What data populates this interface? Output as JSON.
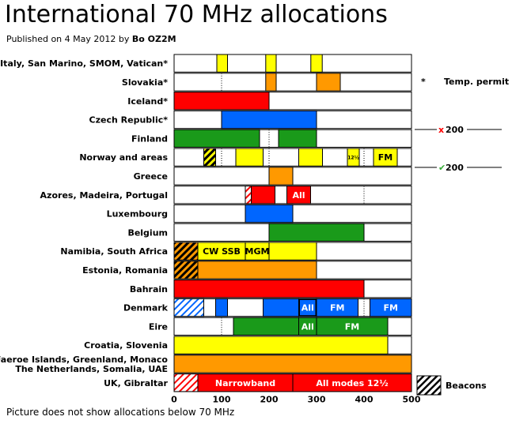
{
  "title": "International 70 MHz allocations",
  "subtitle": {
    "prefix": "Published on 4 May 2012 by ",
    "author": "Bo OZ2M"
  },
  "footnote": "Picture does not show allocations below 70 MHz",
  "colors": {
    "yellow": "#ffff00",
    "orange": "#ff9900",
    "red": "#ff0000",
    "blue": "#0066ff",
    "green": "#1a9a1a",
    "white": "#ffffff",
    "red_mark": "#ff0000",
    "green_mark": "#33aa33"
  },
  "side_annotations": {
    "temp_permit_star": "*",
    "temp_permit": "Temp. permit",
    "x_mark": "x",
    "x_value": "200",
    "check_mark": "✔",
    "check_value": "200",
    "beacons": "Beacons"
  },
  "chart_data": {
    "type": "bar",
    "orientation": "horizontal",
    "x_unit": "kHz above 70 MHz",
    "xlim": [
      0,
      500
    ],
    "xticks": [
      "0",
      "100",
      "200",
      "300",
      "400",
      "500"
    ],
    "categories": [
      "Italy, San Marino, SMOM, Vatican*",
      "Slovakia*",
      "Iceland*",
      "Czech Republic*",
      "Finland",
      "Norway and areas",
      "Greece",
      "Azores, Madeira, Portugal",
      "Luxembourg",
      "Belgium",
      "Namibia, South Africa",
      "Estonia, Romania",
      "Bahrain",
      "Denmark",
      "Eire",
      "Croatia, Slovenia",
      "Faeroe Islands, Greenland, Monaco\nThe Netherlands, Somalia, UAE",
      "UK, Gibraltar"
    ],
    "rows": [
      {
        "segments": [
          {
            "from": 90,
            "to": 112.5,
            "color": "yellow"
          },
          {
            "from": 193,
            "to": 215,
            "color": "yellow"
          },
          {
            "from": 288,
            "to": 312,
            "color": "yellow"
          }
        ],
        "dotted": [
          100,
          300
        ]
      },
      {
        "segments": [
          {
            "from": 193,
            "to": 215,
            "color": "orange"
          },
          {
            "from": 300,
            "to": 350,
            "color": "orange"
          }
        ],
        "dotted": [
          100,
          300
        ]
      },
      {
        "segments": [
          {
            "from": 0,
            "to": 200,
            "color": "red"
          }
        ]
      },
      {
        "segments": [
          {
            "from": 100,
            "to": 300,
            "color": "blue"
          }
        ]
      },
      {
        "segments": [
          {
            "from": 0,
            "to": 180,
            "color": "green"
          },
          {
            "from": 220,
            "to": 300,
            "color": "green"
          }
        ],
        "dotted": [
          200
        ]
      },
      {
        "segments": [
          {
            "from": 62.5,
            "to": 87.5,
            "color": "hatch-yellow"
          },
          {
            "from": 130,
            "to": 187.5,
            "color": "yellow"
          },
          {
            "from": 262.5,
            "to": 312.5,
            "color": "yellow"
          },
          {
            "from": 365,
            "to": 390,
            "color": "yellow",
            "label": "12½",
            "small": true
          },
          {
            "from": 420,
            "to": 470,
            "color": "yellow",
            "label": "FM",
            "label_color": "#000"
          }
        ],
        "dotted": [
          100,
          200,
          300,
          400
        ]
      },
      {
        "segments": [
          {
            "from": 200,
            "to": 250,
            "color": "orange"
          }
        ]
      },
      {
        "segments": [
          {
            "from": 150,
            "to": 162.5,
            "color": "hatch-red"
          },
          {
            "from": 162.5,
            "to": 212.5,
            "color": "red"
          },
          {
            "from": 237.5,
            "to": 287.5,
            "color": "red",
            "label": "All",
            "label_color": "#fff"
          }
        ],
        "dotted": [
          200,
          400
        ]
      },
      {
        "segments": [
          {
            "from": 150,
            "to": 250,
            "color": "blue"
          }
        ]
      },
      {
        "segments": [
          {
            "from": 200,
            "to": 400,
            "color": "green"
          }
        ]
      },
      {
        "segments": [
          {
            "from": 0,
            "to": 50,
            "color": "hatch-orange"
          },
          {
            "from": 50,
            "to": 150,
            "color": "yellow",
            "label": "CW SSB",
            "label_color": "#000"
          },
          {
            "from": 150,
            "to": 200,
            "color": "yellow",
            "label": "MGM",
            "label_color": "#000"
          },
          {
            "from": 200,
            "to": 300,
            "color": "yellow"
          }
        ]
      },
      {
        "segments": [
          {
            "from": 0,
            "to": 50,
            "color": "hatch-orange"
          },
          {
            "from": 50,
            "to": 300,
            "color": "orange"
          }
        ]
      },
      {
        "segments": [
          {
            "from": 0,
            "to": 400,
            "color": "red"
          }
        ]
      },
      {
        "segments": [
          {
            "from": 0,
            "to": 62.5,
            "color": "hatch-blue"
          },
          {
            "from": 87.5,
            "to": 112.5,
            "color": "blue"
          },
          {
            "from": 187.5,
            "to": 262.5,
            "color": "blue"
          },
          {
            "from": 262.5,
            "to": 300,
            "color": "blue",
            "label": "All",
            "label_color": "#fff",
            "boxed": true
          },
          {
            "from": 300,
            "to": 387.5,
            "color": "blue",
            "label": "FM",
            "label_color": "#fff"
          },
          {
            "from": 412.5,
            "to": 500,
            "color": "blue",
            "label": "FM",
            "label_color": "#fff"
          }
        ],
        "dotted": [
          400
        ]
      },
      {
        "segments": [
          {
            "from": 125,
            "to": 262.5,
            "color": "green"
          },
          {
            "from": 262.5,
            "to": 300,
            "color": "green",
            "label": "All",
            "label_color": "#fff"
          },
          {
            "from": 300,
            "to": 450,
            "color": "green",
            "label": "FM",
            "label_color": "#fff"
          }
        ],
        "dotted": [
          100
        ]
      },
      {
        "segments": [
          {
            "from": 0,
            "to": 450,
            "color": "yellow"
          }
        ]
      },
      {
        "segments": [
          {
            "from": 0,
            "to": 500,
            "color": "orange"
          }
        ]
      },
      {
        "segments": [
          {
            "from": 0,
            "to": 50,
            "color": "hatch-red"
          },
          {
            "from": 50,
            "to": 250,
            "color": "red",
            "label": "Narrowband",
            "label_color": "#fff"
          },
          {
            "from": 250,
            "to": 500,
            "color": "red",
            "label": "All modes 12½",
            "label_color": "#fff"
          }
        ]
      }
    ]
  }
}
